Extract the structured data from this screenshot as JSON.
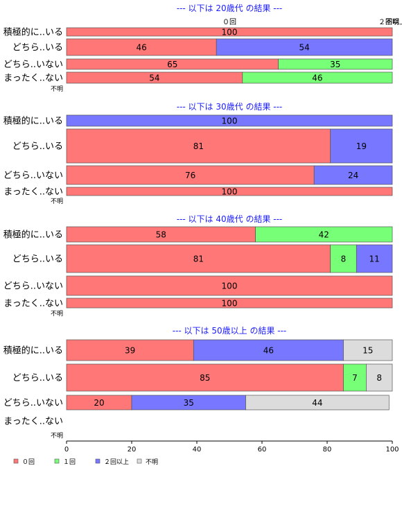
{
  "chart_data": {
    "type": "bar",
    "orientation": "horizontal-stacked-percent",
    "xlim": [
      0,
      100
    ],
    "xticks": [
      "0",
      "20",
      "40",
      "60",
      "80",
      "100"
    ],
    "legend_position": "bottom-left",
    "legend": [
      {
        "name": "０回",
        "color": "#ff7777"
      },
      {
        "name": "１回",
        "color": "#77ff77"
      },
      {
        "name": "２回以上",
        "color": "#7777ff"
      },
      {
        "name": "不明",
        "color": "#dcdcdc"
      }
    ],
    "top_labels": [
      "０回",
      "不明",
      "２回以上"
    ],
    "unknown_label": "不明",
    "panels": [
      {
        "title": "--- 以下は 20歳代 の結果 ---",
        "rows": [
          {
            "label": "積極的に..いる",
            "values": [
              100,
              0,
              0,
              0
            ]
          },
          {
            "label": "どちら..いる",
            "values": [
              46,
              0,
              54,
              0
            ]
          },
          {
            "label": "どちら..いない",
            "values": [
              65,
              35,
              0,
              0
            ]
          },
          {
            "label": "まったく..ない",
            "values": [
              54,
              46,
              0,
              0
            ]
          }
        ]
      },
      {
        "title": "--- 以下は 30歳代 の結果 ---",
        "rows": [
          {
            "label": "積極的に..いる",
            "values": [
              0,
              0,
              100,
              0
            ]
          },
          {
            "label": "どちら..いる",
            "values": [
              81,
              0,
              19,
              0
            ]
          },
          {
            "label": "どちら..いない",
            "values": [
              76,
              0,
              24,
              0
            ]
          },
          {
            "label": "まったく..ない",
            "values": [
              100,
              0,
              0,
              0
            ]
          }
        ]
      },
      {
        "title": "--- 以下は 40歳代 の結果 ---",
        "rows": [
          {
            "label": "積極的に..いる",
            "values": [
              58,
              42,
              0,
              0
            ]
          },
          {
            "label": "どちら..いる",
            "values": [
              81,
              8,
              11,
              0
            ]
          },
          {
            "label": "どちら..いない",
            "values": [
              100,
              0,
              0,
              0
            ]
          },
          {
            "label": "まったく..ない",
            "values": [
              100,
              0,
              0,
              0
            ]
          }
        ]
      },
      {
        "title": "--- 以下は 50歳以上 の結果 ---",
        "rows": [
          {
            "label": "積極的に..いる",
            "values": [
              39,
              0,
              46,
              15
            ]
          },
          {
            "label": "どちら..いる",
            "values": [
              85,
              7,
              0,
              8
            ]
          },
          {
            "label": "どちら..いない",
            "values": [
              20,
              0,
              35,
              44
            ]
          },
          {
            "label": "まったく..ない",
            "values": [
              0,
              0,
              0,
              0
            ]
          }
        ]
      }
    ]
  }
}
